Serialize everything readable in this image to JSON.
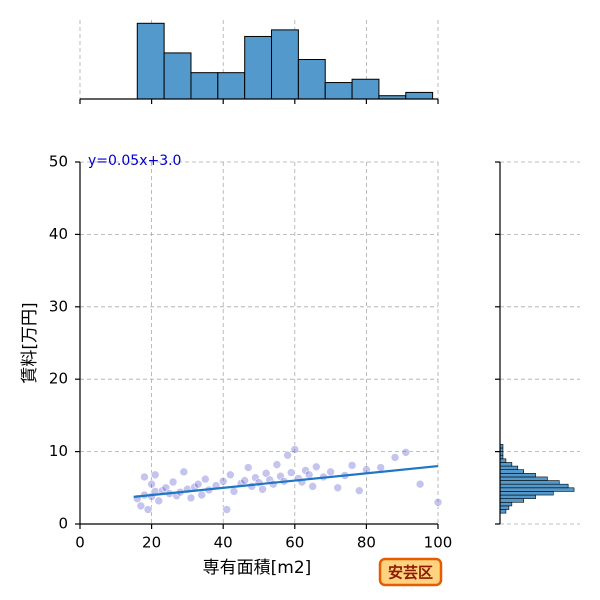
{
  "chart_data": [
    {
      "type": "scatter",
      "xlabel": "専有面積[m2]",
      "ylabel": "賃料[万円]",
      "annotation": "y=0.05x+3.0",
      "badge": "安芸区",
      "x": [
        16,
        17,
        18,
        18,
        19,
        20,
        20,
        21,
        21,
        22,
        23,
        24,
        25,
        26,
        27,
        28,
        29,
        30,
        31,
        32,
        33,
        34,
        35,
        36,
        38,
        40,
        41,
        42,
        43,
        45,
        46,
        47,
        48,
        49,
        50,
        51,
        52,
        53,
        54,
        55,
        56,
        57,
        58,
        59,
        60,
        61,
        62,
        63,
        64,
        65,
        66,
        68,
        70,
        72,
        74,
        76,
        78,
        80,
        84,
        88,
        91,
        95,
        100
      ],
      "y": [
        3.5,
        2.5,
        4.0,
        6.5,
        2.0,
        5.5,
        3.8,
        4.5,
        6.8,
        3.2,
        4.6,
        5.0,
        4.2,
        5.8,
        3.9,
        4.4,
        7.2,
        4.8,
        3.6,
        5.1,
        5.5,
        4.0,
        6.2,
        4.7,
        5.3,
        5.9,
        2.0,
        6.8,
        4.5,
        5.6,
        6.0,
        7.8,
        5.2,
        6.4,
        5.7,
        4.8,
        7.0,
        6.1,
        5.5,
        8.2,
        6.6,
        5.9,
        9.5,
        7.1,
        10.3,
        6.3,
        5.8,
        7.4,
        6.8,
        5.2,
        7.9,
        6.5,
        7.2,
        5.0,
        6.7,
        8.1,
        4.6,
        7.5,
        7.8,
        9.2,
        9.9,
        5.5,
        3.0
      ],
      "color": "#3a3ac8",
      "regression": {
        "x": [
          15,
          100
        ],
        "y": [
          3.75,
          8.0
        ],
        "color": "#1f77c4"
      },
      "xlim": [
        0,
        100
      ],
      "ylim": [
        0,
        50
      ],
      "xticks": [
        0,
        20,
        40,
        60,
        80,
        100
      ],
      "yticks": [
        0,
        10,
        20,
        30,
        40,
        50
      ],
      "grid": true
    },
    {
      "type": "histogram",
      "orientation": "vertical",
      "color": "#5499cb",
      "bins": [
        16,
        23.5,
        31,
        38.5,
        46,
        53.5,
        61,
        68.5,
        76,
        83.5,
        91,
        98.5
      ],
      "values": [
        23,
        14,
        8,
        8,
        19,
        21,
        12,
        5,
        6,
        1,
        2
      ],
      "xlim": [
        0,
        100
      ],
      "ylim": [
        0,
        24
      ],
      "xticks": [
        0,
        20,
        40,
        60,
        80,
        100
      ],
      "grid": true
    },
    {
      "type": "histogram",
      "orientation": "horizontal",
      "color": "#5499cb",
      "bins": [
        1.5,
        2,
        2.5,
        3,
        3.5,
        4,
        4.5,
        5,
        5.5,
        6,
        6.5,
        7,
        7.5,
        8,
        8.5,
        9,
        9.5,
        10,
        10.5,
        11
      ],
      "values": [
        2,
        3,
        4,
        8,
        12,
        18,
        25,
        23,
        20,
        16,
        12,
        8,
        6,
        4,
        2,
        1,
        1,
        1,
        1
      ],
      "xlim": [
        0,
        27
      ],
      "ylim": [
        0,
        50
      ],
      "yticks": [
        0,
        10,
        20,
        30,
        40,
        50
      ],
      "grid": true
    }
  ]
}
